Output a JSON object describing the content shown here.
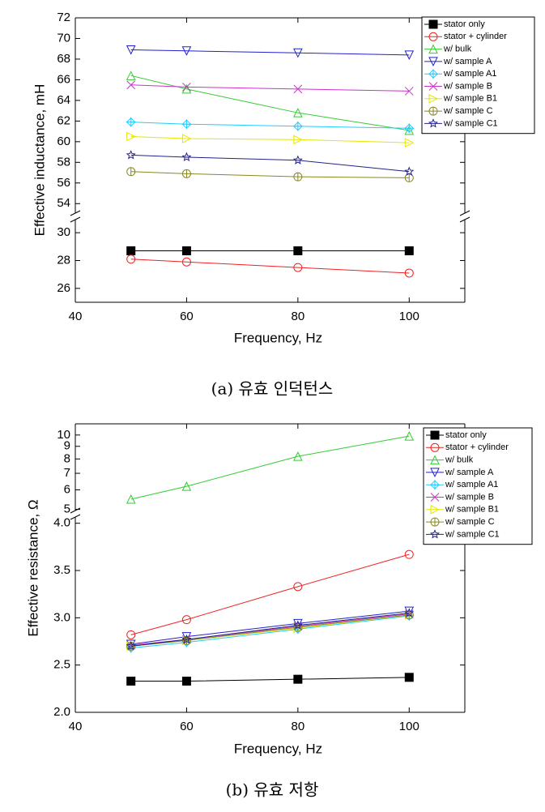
{
  "chart_data": [
    {
      "type": "line",
      "caption": "(a) 유효 인덕턴스",
      "xlabel": "Frequency, Hz",
      "ylabel": "Effective inductance, mH",
      "x": [
        50,
        60,
        80,
        100
      ],
      "xlim": [
        40,
        110
      ],
      "xticks": [
        40,
        60,
        80,
        100
      ],
      "y_segments": [
        {
          "ylim": [
            53,
            72
          ],
          "yticks": [
            54,
            56,
            58,
            60,
            62,
            64,
            66,
            68,
            70,
            72
          ]
        },
        {
          "ylim": [
            25,
            31
          ],
          "yticks": [
            26,
            28,
            30
          ]
        }
      ],
      "legend": "upper right",
      "series": [
        {
          "name": "stator only",
          "color": "#000000",
          "marker": "square-filled",
          "values": [
            28.7,
            28.7,
            28.7,
            28.7
          ]
        },
        {
          "name": "stator + cylinder",
          "color": "#ee2222",
          "marker": "circle",
          "values": [
            28.1,
            27.9,
            27.5,
            27.1
          ]
        },
        {
          "name": "w/ bulk",
          "color": "#33cc33",
          "marker": "triangle-up",
          "values": [
            66.4,
            65.1,
            62.8,
            61.1
          ]
        },
        {
          "name": "w/ sample A",
          "color": "#2222cc",
          "marker": "triangle-down",
          "values": [
            68.9,
            68.8,
            68.6,
            68.4
          ]
        },
        {
          "name": "w/ sample A1",
          "color": "#22ccff",
          "marker": "diamond-plus",
          "values": [
            61.9,
            61.7,
            61.5,
            61.3
          ]
        },
        {
          "name": "w/ sample B",
          "color": "#cc33cc",
          "marker": "x",
          "values": [
            65.5,
            65.3,
            65.1,
            64.9
          ]
        },
        {
          "name": "w/ sample B1",
          "color": "#e6e600",
          "marker": "triangle-right",
          "values": [
            60.5,
            60.3,
            60.2,
            59.9
          ]
        },
        {
          "name": "w/ sample C",
          "color": "#888822",
          "marker": "circle-bar",
          "values": [
            57.1,
            56.9,
            56.6,
            56.5
          ]
        },
        {
          "name": "w/ sample C1",
          "color": "#222288",
          "marker": "star",
          "values": [
            58.7,
            58.5,
            58.2,
            57.1
          ]
        }
      ]
    },
    {
      "type": "line",
      "caption": "(b) 유효 저항",
      "xlabel": "Frequency, Hz",
      "ylabel": "Effective resistance, Ω",
      "x": [
        50,
        60,
        80,
        100
      ],
      "xlim": [
        40,
        110
      ],
      "xticks": [
        40,
        60,
        80,
        100
      ],
      "y_segments": [
        {
          "ylim": [
            4.8,
            11.1
          ],
          "yticks": [
            5,
            6,
            7,
            8,
            9,
            10
          ],
          "log": true
        },
        {
          "ylim": [
            2,
            4.1
          ],
          "yticks": [
            {
              "value": 2,
              "label": "2.0"
            },
            2.5,
            {
              "value": 3,
              "label": "3.0"
            },
            3.5,
            {
              "value": 4,
              "label": "4.0"
            }
          ]
        }
      ],
      "legend": "upper right",
      "series": [
        {
          "name": "stator only",
          "color": "#000000",
          "marker": "square-filled",
          "values": [
            2.33,
            2.33,
            2.35,
            2.37
          ]
        },
        {
          "name": "stator + cylinder",
          "color": "#ee2222",
          "marker": "circle",
          "values": [
            2.82,
            2.98,
            3.33,
            3.67
          ]
        },
        {
          "name": "w/ bulk",
          "color": "#33cc33",
          "marker": "triangle-up",
          "values": [
            5.5,
            6.2,
            8.2,
            9.9
          ]
        },
        {
          "name": "w/ sample A",
          "color": "#2222cc",
          "marker": "triangle-down",
          "values": [
            2.72,
            2.8,
            2.94,
            3.07
          ]
        },
        {
          "name": "w/ sample A1",
          "color": "#22ccff",
          "marker": "diamond-plus",
          "values": [
            2.68,
            2.74,
            2.88,
            3.02
          ]
        },
        {
          "name": "w/ sample B",
          "color": "#cc33cc",
          "marker": "x",
          "values": [
            2.71,
            2.77,
            2.91,
            3.04
          ]
        },
        {
          "name": "w/ sample B1",
          "color": "#e6e600",
          "marker": "triangle-right",
          "values": [
            2.7,
            2.76,
            2.89,
            3.03
          ]
        },
        {
          "name": "w/ sample C",
          "color": "#888822",
          "marker": "circle-bar",
          "values": [
            2.7,
            2.76,
            2.9,
            3.03
          ]
        },
        {
          "name": "w/ sample C1",
          "color": "#222288",
          "marker": "star",
          "values": [
            2.7,
            2.77,
            2.92,
            3.05
          ]
        }
      ]
    }
  ]
}
